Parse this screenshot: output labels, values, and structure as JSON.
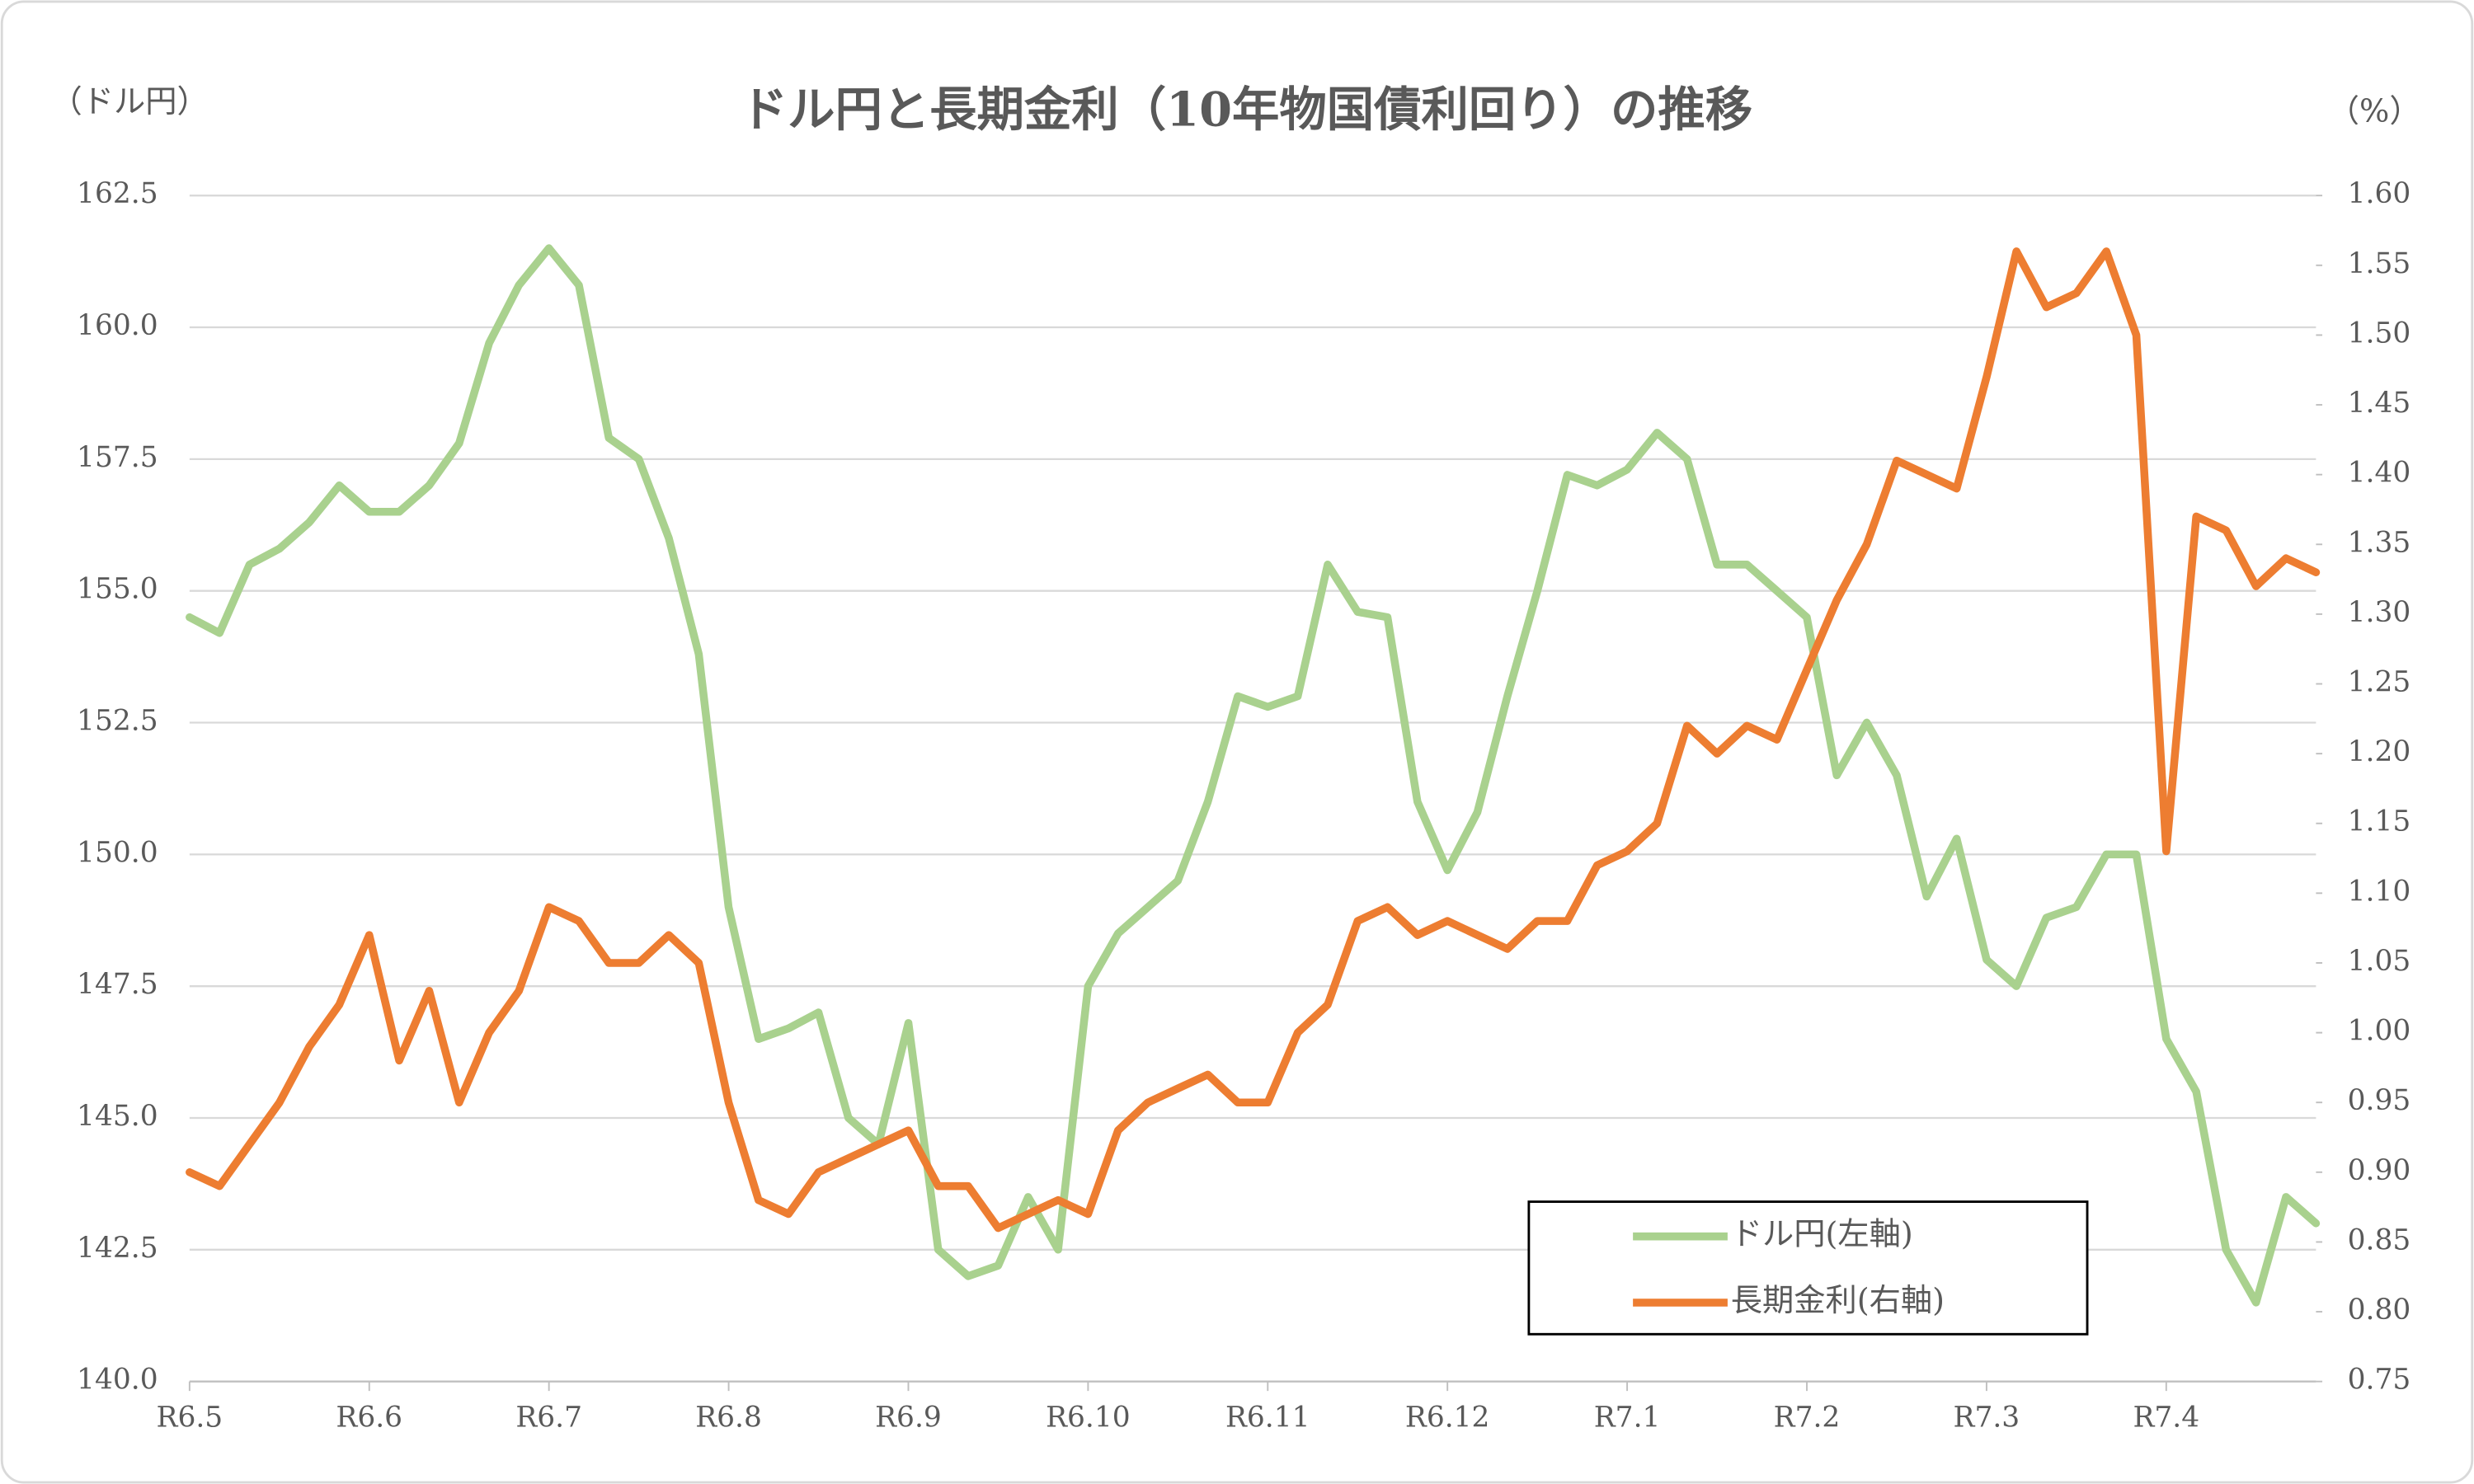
{
  "chart_data": {
    "type": "line",
    "title": "ドル円と長期金利（10年物国債利回り）の推移",
    "y_label": "（ドル円）",
    "y2_label": "（%）",
    "categories": [
      "R6.5",
      null,
      null,
      null,
      null,
      null,
      "R6.6",
      null,
      null,
      null,
      null,
      null,
      "R6.7",
      null,
      null,
      null,
      null,
      null,
      "R6.8",
      null,
      null,
      null,
      null,
      null,
      "R6.9",
      null,
      null,
      null,
      null,
      null,
      "R6.10",
      null,
      null,
      null,
      null,
      null,
      "R6.11",
      null,
      null,
      null,
      null,
      null,
      "R6.12",
      null,
      null,
      null,
      null,
      null,
      "R7.1",
      null,
      null,
      null,
      null,
      null,
      "R7.2",
      null,
      null,
      null,
      null,
      null,
      "R7.3",
      null,
      null,
      null,
      null,
      null,
      "R7.4",
      null,
      null,
      null,
      null,
      null
    ],
    "series": [
      {
        "name": "ドル円(左軸)",
        "color": "#a9d18e",
        "axis": "y",
        "values": [
          154.5,
          154.2,
          155.5,
          155.8,
          156.3,
          157.0,
          156.5,
          156.5,
          157.0,
          157.8,
          159.7,
          160.8,
          161.5,
          160.8,
          157.9,
          157.5,
          156.0,
          153.8,
          149.0,
          146.5,
          146.7,
          147.0,
          145.0,
          144.5,
          146.8,
          142.5,
          142.0,
          142.2,
          143.5,
          142.5,
          147.5,
          148.5,
          149.0,
          149.5,
          151.0,
          153.0,
          152.8,
          153.0,
          155.5,
          154.6,
          154.5,
          151.0,
          149.7,
          150.8,
          153.0,
          155.0,
          157.2,
          157.0,
          157.3,
          158.0,
          157.5,
          155.5,
          155.5,
          155.0,
          154.5,
          151.5,
          152.5,
          151.5,
          149.2,
          150.3,
          148.0,
          147.5,
          148.8,
          149.0,
          150.0,
          150.0,
          146.5,
          145.5,
          142.5,
          141.5,
          143.5,
          143.0
        ]
      },
      {
        "name": "長期金利(右軸)",
        "color": "#ed7d31",
        "axis": "y2",
        "values": [
          0.9,
          0.89,
          0.92,
          0.95,
          0.99,
          1.02,
          1.07,
          0.98,
          1.03,
          0.95,
          1.0,
          1.03,
          1.09,
          1.08,
          1.05,
          1.05,
          1.07,
          1.05,
          0.95,
          0.88,
          0.87,
          0.9,
          0.91,
          0.92,
          0.93,
          0.89,
          0.89,
          0.86,
          0.87,
          0.88,
          0.87,
          0.93,
          0.95,
          0.96,
          0.97,
          0.95,
          0.95,
          1.0,
          1.02,
          1.08,
          1.09,
          1.07,
          1.08,
          1.07,
          1.06,
          1.08,
          1.08,
          1.12,
          1.13,
          1.15,
          1.22,
          1.2,
          1.22,
          1.21,
          1.26,
          1.31,
          1.35,
          1.41,
          1.4,
          1.39,
          1.47,
          1.56,
          1.52,
          1.53,
          1.56,
          1.5,
          1.13,
          1.37,
          1.36,
          1.32,
          1.34,
          1.33
        ]
      }
    ],
    "ylim": [
      140,
      162.5
    ],
    "yticks": [
      {
        "value": 140,
        "label": "140.0"
      },
      142.5,
      {
        "value": 145,
        "label": "145.0"
      },
      147.5,
      {
        "value": 150,
        "label": "150.0"
      },
      152.5,
      {
        "value": 155,
        "label": "155.0"
      },
      157.5,
      {
        "value": 160,
        "label": "160.0"
      },
      162.5
    ],
    "y2lim": [
      0.75,
      1.6
    ],
    "y2ticks": [
      0.75,
      {
        "value": 0.8,
        "label": "0.80"
      },
      0.85,
      {
        "value": 0.9,
        "label": "0.90"
      },
      0.95,
      {
        "value": 1.0,
        "label": "1.00"
      },
      1.05,
      {
        "value": 1.1,
        "label": "1.10"
      },
      1.15,
      {
        "value": 1.2,
        "label": "1.20"
      },
      1.25,
      {
        "value": 1.3,
        "label": "1.30"
      },
      1.35,
      {
        "value": 1.4,
        "label": "1.40"
      },
      1.45,
      {
        "value": 1.5,
        "label": "1.50"
      },
      1.55,
      {
        "value": 1.6,
        "label": "1.60"
      }
    ],
    "grid": true,
    "legend": "lower right"
  }
}
